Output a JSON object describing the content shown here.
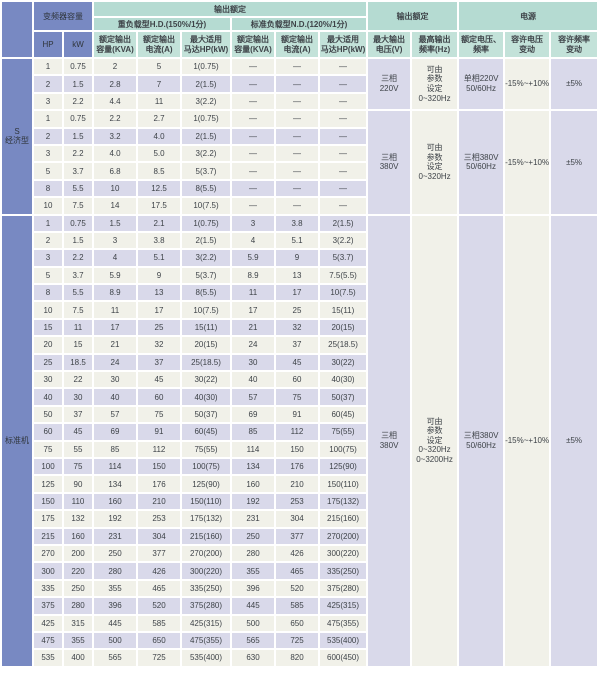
{
  "colors": {
    "header_blue": "#7889c2",
    "header_green": "#b5dbd2",
    "header_green_light": "#c3e2d9",
    "row_purple": "#d9d9ea",
    "row_beige": "#f1f1e9"
  },
  "table": {
    "header": {
      "inverter_capacity": "变频器容量",
      "hp": "HP",
      "kw": "kW",
      "output_rating": "输出额定",
      "heavy_duty": "重负载型H.D.(150%/1分)",
      "normal_duty": "标准负载型N.D.(120%/1分)",
      "rated_output_capacity": "额定输出\n容量(KVA)",
      "rated_output_current": "额定输出\n电流(A)",
      "max_motor": "最大适用\n马达HP(kW)",
      "output_rating2": "输出额定",
      "max_output_voltage": "最大输出\n电压(V)",
      "max_output_freq": "最高输出\n频率(Hz)",
      "power_supply": "电源",
      "rated_voltage_freq": "额定电压、\n频率",
      "voltage_tolerance": "容许电压\n变动",
      "freq_tolerance": "容许频率\n变动"
    },
    "sections": [
      {
        "label": "S\n经济型",
        "groups": [
          {
            "rows": [
              [
                "1",
                "0.75",
                "2",
                "5",
                "1(0.75)",
                "—",
                "—",
                "—"
              ],
              [
                "2",
                "1.5",
                "2.8",
                "7",
                "2(1.5)",
                "—",
                "—",
                "—"
              ],
              [
                "3",
                "2.2",
                "4.4",
                "11",
                "3(2.2)",
                "—",
                "—",
                "—"
              ]
            ],
            "voltage": "三相\n220V",
            "freq": "可由\n参数\n设定\n0~320Hz",
            "supply": "单相220V\n50/60Hz",
            "voltage_tol": "-15%~+10%",
            "freq_tol": "±5%"
          },
          {
            "rows": [
              [
                "1",
                "0.75",
                "2.2",
                "2.7",
                "1(0.75)",
                "—",
                "—",
                "—"
              ],
              [
                "2",
                "1.5",
                "3.2",
                "4.0",
                "2(1.5)",
                "—",
                "—",
                "—"
              ],
              [
                "3",
                "2.2",
                "4.0",
                "5.0",
                "3(2.2)",
                "—",
                "—",
                "—"
              ],
              [
                "5",
                "3.7",
                "6.8",
                "8.5",
                "5(3.7)",
                "—",
                "—",
                "—"
              ],
              [
                "8",
                "5.5",
                "10",
                "12.5",
                "8(5.5)",
                "—",
                "—",
                "—"
              ],
              [
                "10",
                "7.5",
                "14",
                "17.5",
                "10(7.5)",
                "—",
                "—",
                "—"
              ]
            ],
            "voltage": "三相\n380V",
            "freq": "可由\n参数\n设定\n0~320Hz",
            "supply": "三相380V\n50/60Hz",
            "voltage_tol": "-15%~+10%",
            "freq_tol": "±5%"
          }
        ]
      },
      {
        "label": "标准机",
        "groups": [
          {
            "rows": [
              [
                "1",
                "0.75",
                "1.5",
                "2.1",
                "1(0.75)",
                "3",
                "3.8",
                "2(1.5)"
              ],
              [
                "2",
                "1.5",
                "3",
                "3.8",
                "2(1.5)",
                "4",
                "5.1",
                "3(2.2)"
              ],
              [
                "3",
                "2.2",
                "4",
                "5.1",
                "3(2.2)",
                "5.9",
                "9",
                "5(3.7)"
              ],
              [
                "5",
                "3.7",
                "5.9",
                "9",
                "5(3.7)",
                "8.9",
                "13",
                "7.5(5.5)"
              ],
              [
                "8",
                "5.5",
                "8.9",
                "13",
                "8(5.5)",
                "11",
                "17",
                "10(7.5)"
              ],
              [
                "10",
                "7.5",
                "11",
                "17",
                "10(7.5)",
                "17",
                "25",
                "15(11)"
              ],
              [
                "15",
                "11",
                "17",
                "25",
                "15(11)",
                "21",
                "32",
                "20(15)"
              ],
              [
                "20",
                "15",
                "21",
                "32",
                "20(15)",
                "24",
                "37",
                "25(18.5)"
              ],
              [
                "25",
                "18.5",
                "24",
                "37",
                "25(18.5)",
                "30",
                "45",
                "30(22)"
              ],
              [
                "30",
                "22",
                "30",
                "45",
                "30(22)",
                "40",
                "60",
                "40(30)"
              ],
              [
                "40",
                "30",
                "40",
                "60",
                "40(30)",
                "57",
                "75",
                "50(37)"
              ],
              [
                "50",
                "37",
                "57",
                "75",
                "50(37)",
                "69",
                "91",
                "60(45)"
              ],
              [
                "60",
                "45",
                "69",
                "91",
                "60(45)",
                "85",
                "112",
                "75(55)"
              ],
              [
                "75",
                "55",
                "85",
                "112",
                "75(55)",
                "114",
                "150",
                "100(75)"
              ],
              [
                "100",
                "75",
                "114",
                "150",
                "100(75)",
                "134",
                "176",
                "125(90)"
              ],
              [
                "125",
                "90",
                "134",
                "176",
                "125(90)",
                "160",
                "210",
                "150(110)"
              ],
              [
                "150",
                "110",
                "160",
                "210",
                "150(110)",
                "192",
                "253",
                "175(132)"
              ],
              [
                "175",
                "132",
                "192",
                "253",
                "175(132)",
                "231",
                "304",
                "215(160)"
              ],
              [
                "215",
                "160",
                "231",
                "304",
                "215(160)",
                "250",
                "377",
                "270(200)"
              ],
              [
                "270",
                "200",
                "250",
                "377",
                "270(200)",
                "280",
                "426",
                "300(220)"
              ],
              [
                "300",
                "220",
                "280",
                "426",
                "300(220)",
                "355",
                "465",
                "335(250)"
              ],
              [
                "335",
                "250",
                "355",
                "465",
                "335(250)",
                "396",
                "520",
                "375(280)"
              ],
              [
                "375",
                "280",
                "396",
                "520",
                "375(280)",
                "445",
                "585",
                "425(315)"
              ],
              [
                "425",
                "315",
                "445",
                "585",
                "425(315)",
                "500",
                "650",
                "475(355)"
              ],
              [
                "475",
                "355",
                "500",
                "650",
                "475(355)",
                "565",
                "725",
                "535(400)"
              ],
              [
                "535",
                "400",
                "565",
                "725",
                "535(400)",
                "630",
                "820",
                "600(450)"
              ]
            ],
            "voltage": "三相\n380V",
            "freq": "可由\n参数\n设定\n0~320Hz\n0~3200Hz",
            "supply": "三相380V\n50/60Hz",
            "voltage_tol": "-15%~+10%",
            "freq_tol": "±5%"
          }
        ]
      }
    ]
  }
}
